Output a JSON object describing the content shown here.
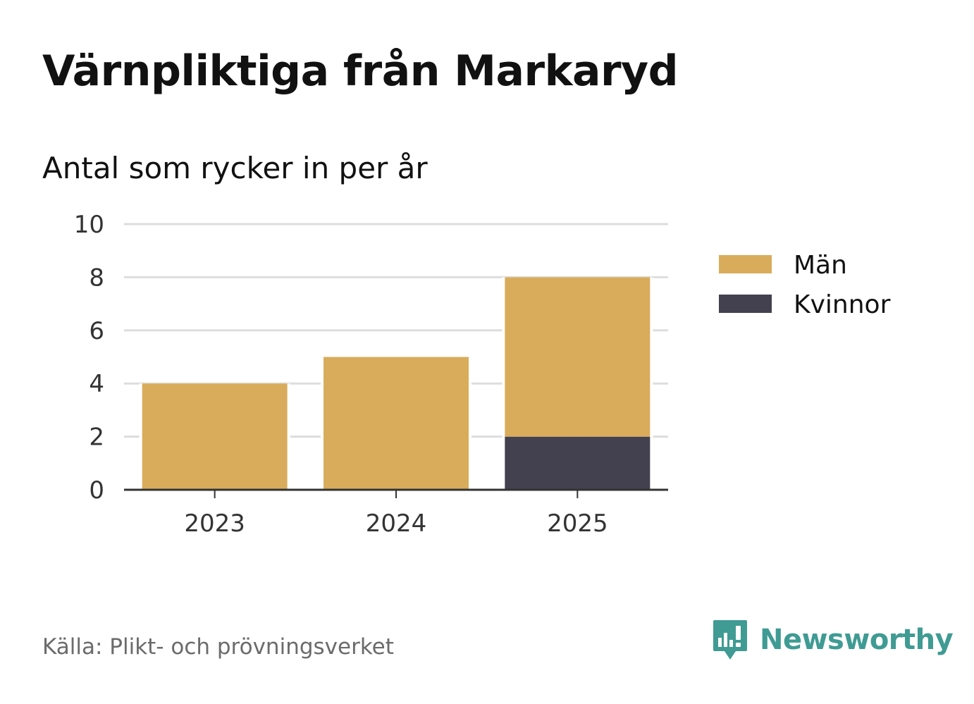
{
  "title": "Värnpliktiga från Markaryd",
  "subtitle": "Antal som rycker in per år",
  "source": "Källa: Plikt- och prövningsverket",
  "brand": {
    "name": "Newsworthy",
    "color": "#3f9b93",
    "icon": "speech-bubble-bar-chart-icon"
  },
  "chart_data": {
    "type": "bar",
    "stacked": true,
    "categories": [
      "2023",
      "2024",
      "2025"
    ],
    "series": [
      {
        "name": "Kvinnor",
        "color": "#43404f",
        "values": [
          0,
          0,
          2
        ]
      },
      {
        "name": "Män",
        "color": "#d9ac5b",
        "values": [
          4,
          5,
          6
        ]
      }
    ],
    "legend_order": [
      "Män",
      "Kvinnor"
    ],
    "yticks": [
      "0",
      "2",
      "4",
      "6",
      "8",
      "10"
    ],
    "ylim": [
      0,
      10
    ],
    "grid": true,
    "legend_position": "right"
  }
}
